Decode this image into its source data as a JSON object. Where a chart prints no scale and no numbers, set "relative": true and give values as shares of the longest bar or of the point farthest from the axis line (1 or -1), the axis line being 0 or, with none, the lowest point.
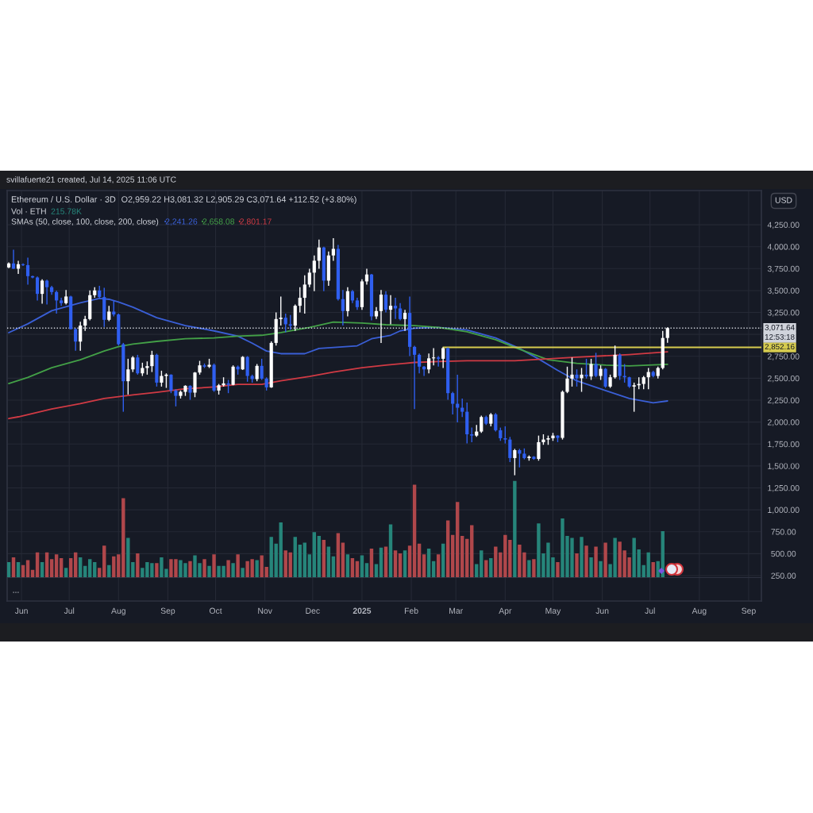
{
  "chart_data": [
    {
      "type": "candlestick",
      "title": "Ethereum / U.S. Dollar · 3D",
      "subtitle": "O2,959.22 H3,081.32 L2,905.29 C3,071.64 +112.52 (+3.80%)",
      "ylabel": "USD",
      "legend_title": "SMAs (50, close, 100, close, 200, close)",
      "legend": "top left",
      "grid": true,
      "xlim": [
        "2024-05-23",
        "2025-09-09"
      ],
      "xticks": [
        {
          "value": "2024-06-01",
          "label": "Jun"
        },
        {
          "value": "2024-07-01",
          "label": "Jul"
        },
        {
          "value": "2024-08-01",
          "label": "Aug"
        },
        {
          "value": "2024-09-01",
          "label": "Sep"
        },
        {
          "value": "2024-10-01",
          "label": "Oct"
        },
        {
          "value": "2024-11-01",
          "label": "Nov"
        },
        {
          "value": "2024-12-01",
          "label": "Dec"
        },
        {
          "value": "2025-01-01",
          "label": "2025"
        },
        {
          "value": "2025-02-01",
          "label": "Feb"
        },
        {
          "value": "2025-03-01",
          "label": "Mar"
        },
        {
          "value": "2025-04-01",
          "label": "Apr"
        },
        {
          "value": "2025-05-01",
          "label": "May"
        },
        {
          "value": "2025-06-01",
          "label": "Jun"
        },
        {
          "value": "2025-07-01",
          "label": "Jul"
        },
        {
          "value": "2025-08-01",
          "label": "Aug"
        },
        {
          "value": "2025-09-01",
          "label": "Sep"
        }
      ],
      "ylim": [
        -40,
        4640
      ],
      "yticks": [
        {
          "value": 250,
          "label": "250.00"
        },
        {
          "value": 500,
          "label": "500.00"
        },
        {
          "value": 750,
          "label": "750.00"
        },
        {
          "value": 1000,
          "label": "1,000.00"
        },
        {
          "value": 1250,
          "label": "1,250.00"
        },
        {
          "value": 1500,
          "label": "1,500.00"
        },
        {
          "value": 1750,
          "label": "1,750.00"
        },
        {
          "value": 2000,
          "label": "2,000.00"
        },
        {
          "value": 2250,
          "label": "2,250.00"
        },
        {
          "value": 2500,
          "label": "2,500.00"
        },
        {
          "value": 2750,
          "label": "2,750.00"
        },
        {
          "value": 3000,
          "label": null
        },
        {
          "value": 3250,
          "label": "3,250.00"
        },
        {
          "value": 3500,
          "label": "3,500.00"
        },
        {
          "value": 3750,
          "label": "3,750.00"
        },
        {
          "value": 4000,
          "label": "4,000.00"
        },
        {
          "value": 4250,
          "label": "4,250.00"
        }
      ],
      "x": [
        "2024-05-24",
        "2024-05-27",
        "2024-05-30",
        "2024-06-02",
        "2024-06-05",
        "2024-06-08",
        "2024-06-11",
        "2024-06-14",
        "2024-06-17",
        "2024-06-20",
        "2024-06-23",
        "2024-06-26",
        "2024-06-29",
        "2024-07-02",
        "2024-07-05",
        "2024-07-08",
        "2024-07-11",
        "2024-07-14",
        "2024-07-17",
        "2024-07-20",
        "2024-07-23",
        "2024-07-26",
        "2024-07-29",
        "2024-08-01",
        "2024-08-04",
        "2024-08-07",
        "2024-08-10",
        "2024-08-13",
        "2024-08-16",
        "2024-08-19",
        "2024-08-22",
        "2024-08-25",
        "2024-08-28",
        "2024-08-31",
        "2024-09-03",
        "2024-09-06",
        "2024-09-09",
        "2024-09-12",
        "2024-09-15",
        "2024-09-18",
        "2024-09-21",
        "2024-09-24",
        "2024-09-27",
        "2024-09-30",
        "2024-10-03",
        "2024-10-06",
        "2024-10-09",
        "2024-10-12",
        "2024-10-15",
        "2024-10-18",
        "2024-10-21",
        "2024-10-24",
        "2024-10-27",
        "2024-10-30",
        "2024-11-02",
        "2024-11-05",
        "2024-11-08",
        "2024-11-11",
        "2024-11-14",
        "2024-11-17",
        "2024-11-20",
        "2024-11-23",
        "2024-11-26",
        "2024-11-29",
        "2024-12-02",
        "2024-12-05",
        "2024-12-08",
        "2024-12-11",
        "2024-12-14",
        "2024-12-17",
        "2024-12-20",
        "2024-12-23",
        "2024-12-26",
        "2024-12-29",
        "2025-01-01",
        "2025-01-04",
        "2025-01-07",
        "2025-01-10",
        "2025-01-13",
        "2025-01-16",
        "2025-01-19",
        "2025-01-22",
        "2025-01-25",
        "2025-01-28",
        "2025-01-31",
        "2025-02-03",
        "2025-02-06",
        "2025-02-09",
        "2025-02-12",
        "2025-02-15",
        "2025-02-18",
        "2025-02-21",
        "2025-02-24",
        "2025-02-27",
        "2025-03-02",
        "2025-03-05",
        "2025-03-08",
        "2025-03-11",
        "2025-03-14",
        "2025-03-17",
        "2025-03-20",
        "2025-03-23",
        "2025-03-26",
        "2025-03-29",
        "2025-04-01",
        "2025-04-04",
        "2025-04-07",
        "2025-04-10",
        "2025-04-13",
        "2025-04-16",
        "2025-04-19",
        "2025-04-22",
        "2025-04-25",
        "2025-04-28",
        "2025-05-01",
        "2025-05-04",
        "2025-05-07",
        "2025-05-10",
        "2025-05-13",
        "2025-05-16",
        "2025-05-19",
        "2025-05-22",
        "2025-05-25",
        "2025-05-28",
        "2025-05-31",
        "2025-06-03",
        "2025-06-06",
        "2025-06-09",
        "2025-06-12",
        "2025-06-15",
        "2025-06-18",
        "2025-06-21",
        "2025-06-24",
        "2025-06-27",
        "2025-06-30",
        "2025-07-03",
        "2025-07-06",
        "2025-07-09",
        "2025-07-12"
      ],
      "ohlc": [
        [
          3764,
          3820,
          3755,
          3809
        ],
        [
          3809,
          3966,
          3745,
          3749
        ],
        [
          3749,
          3840,
          3689,
          3800
        ],
        [
          3800,
          3810,
          3780,
          3790
        ],
        [
          3790,
          3876,
          3568,
          3664
        ],
        [
          3664,
          3670,
          3640,
          3649
        ],
        [
          3649,
          3660,
          3387,
          3462
        ],
        [
          3462,
          3628,
          3350,
          3613
        ],
        [
          3613,
          3625,
          3341,
          3538
        ],
        [
          3538,
          3553,
          3453,
          3483
        ],
        [
          3483,
          3500,
          3236,
          3387
        ],
        [
          3387,
          3417,
          3326,
          3356
        ],
        [
          3356,
          3507,
          3341,
          3432
        ],
        [
          3432,
          3440,
          3055,
          3060
        ],
        [
          3060,
          3070,
          2813,
          2918
        ],
        [
          2918,
          3145,
          2813,
          3100
        ],
        [
          3100,
          3211,
          3039,
          3175
        ],
        [
          3175,
          3501,
          3160,
          3447
        ],
        [
          3447,
          3538,
          3417,
          3501
        ],
        [
          3501,
          3553,
          3417,
          3426
        ],
        [
          3426,
          3532,
          3085,
          3166
        ],
        [
          3166,
          3326,
          3150,
          3260
        ],
        [
          3260,
          3387,
          3205,
          3227
        ],
        [
          3227,
          3236,
          2873,
          2888
        ],
        [
          2888,
          2903,
          2118,
          2466
        ],
        [
          2466,
          2722,
          2314,
          2601
        ],
        [
          2601,
          2752,
          2571,
          2737
        ],
        [
          2737,
          2767,
          2541,
          2556
        ],
        [
          2556,
          2677,
          2526,
          2617
        ],
        [
          2617,
          2692,
          2541,
          2638
        ],
        [
          2638,
          2813,
          2571,
          2767
        ],
        [
          2767,
          2780,
          2405,
          2450
        ],
        [
          2450,
          2586,
          2405,
          2526
        ],
        [
          2526,
          2556,
          2390,
          2541
        ],
        [
          2541,
          2545,
          2330,
          2360
        ],
        [
          2360,
          2375,
          2179,
          2299
        ],
        [
          2299,
          2360,
          2269,
          2345
        ],
        [
          2345,
          2420,
          2299,
          2414
        ],
        [
          2414,
          2420,
          2254,
          2336
        ],
        [
          2336,
          2571,
          2284,
          2565
        ],
        [
          2565,
          2698,
          2541,
          2647
        ],
        [
          2647,
          2668,
          2617,
          2632
        ],
        [
          2632,
          2722,
          2617,
          2653
        ],
        [
          2653,
          2668,
          2345,
          2360
        ],
        [
          2360,
          2435,
          2314,
          2420
        ],
        [
          2420,
          2511,
          2405,
          2441
        ],
        [
          2441,
          2481,
          2330,
          2425
        ],
        [
          2425,
          2647,
          2420,
          2632
        ],
        [
          2632,
          2645,
          2541,
          2601
        ],
        [
          2601,
          2752,
          2595,
          2743
        ],
        [
          2743,
          2752,
          2460,
          2526
        ],
        [
          2526,
          2541,
          2450,
          2490
        ],
        [
          2490,
          2662,
          2466,
          2641
        ],
        [
          2641,
          2722,
          2481,
          2496
        ],
        [
          2496,
          2510,
          2360,
          2396
        ],
        [
          2396,
          2920,
          2390,
          2903
        ],
        [
          2903,
          3251,
          2873,
          3175
        ],
        [
          3175,
          3432,
          3100,
          3190
        ],
        [
          3190,
          3236,
          3024,
          3115
        ],
        [
          3115,
          3220,
          3054,
          3100
        ],
        [
          3100,
          3341,
          3039,
          3326
        ],
        [
          3326,
          3538,
          3251,
          3417
        ],
        [
          3417,
          3674,
          3236,
          3568
        ],
        [
          3568,
          3749,
          3538,
          3704
        ],
        [
          3704,
          3900,
          3492,
          3840
        ],
        [
          3840,
          4081,
          3749,
          3991
        ],
        [
          3991,
          4000,
          3492,
          3613
        ],
        [
          3613,
          3945,
          3553,
          3900
        ],
        [
          3900,
          4096,
          3840,
          3975
        ],
        [
          3975,
          4021,
          3387,
          3402
        ],
        [
          3402,
          3507,
          3100,
          3266
        ],
        [
          3266,
          3538,
          3205,
          3492
        ],
        [
          3492,
          3507,
          3356,
          3387
        ],
        [
          3387,
          3417,
          3281,
          3311
        ],
        [
          3311,
          3628,
          3281,
          3604
        ],
        [
          3604,
          3749,
          3568,
          3683
        ],
        [
          3683,
          3690,
          3160,
          3205
        ],
        [
          3205,
          3311,
          3175,
          3266
        ],
        [
          3266,
          3507,
          2903,
          3453
        ],
        [
          3453,
          3492,
          3251,
          3281
        ],
        [
          3281,
          3447,
          3115,
          3326
        ],
        [
          3326,
          3417,
          3175,
          3296
        ],
        [
          3296,
          3356,
          3160,
          3175
        ],
        [
          3175,
          3281,
          3039,
          3245
        ],
        [
          3245,
          3432,
          2752,
          2858
        ],
        [
          2858,
          2870,
          2148,
          2767
        ],
        [
          2767,
          2783,
          2556,
          2632
        ],
        [
          2632,
          2640,
          2526,
          2601
        ],
        [
          2601,
          2783,
          2556,
          2727
        ],
        [
          2727,
          2843,
          2647,
          2737
        ],
        [
          2737,
          2752,
          2632,
          2722
        ],
        [
          2722,
          2852.16,
          2617,
          2843
        ],
        [
          2843,
          2850,
          2254,
          2330
        ],
        [
          2330,
          2345,
          2088,
          2209
        ],
        [
          2209,
          2541,
          1997,
          2164
        ],
        [
          2164,
          2269,
          2058,
          2118
        ],
        [
          2118,
          2224,
          1756,
          1861
        ],
        [
          1861,
          1937,
          1771,
          1846
        ],
        [
          1846,
          1967,
          1831,
          1892
        ],
        [
          1892,
          2073,
          1877,
          2058
        ],
        [
          2058,
          2073,
          1967,
          1982
        ],
        [
          1982,
          2103,
          1952,
          2088
        ],
        [
          2088,
          2103,
          1892,
          1907
        ],
        [
          1907,
          1937,
          1786,
          1816
        ],
        [
          1816,
          1952,
          1756,
          1801
        ],
        [
          1801,
          1831,
          1544,
          1590
        ],
        [
          1590,
          1695,
          1394,
          1680
        ],
        [
          1680,
          1695,
          1484,
          1640
        ],
        [
          1640,
          1700,
          1575,
          1590
        ],
        [
          1590,
          1620,
          1560,
          1605
        ],
        [
          1605,
          1612,
          1570,
          1580
        ],
        [
          1580,
          1846,
          1560,
          1771
        ],
        [
          1771,
          1861,
          1741,
          1801
        ],
        [
          1801,
          1846,
          1741,
          1816
        ],
        [
          1816,
          1877,
          1786,
          1846
        ],
        [
          1846,
          1850,
          1771,
          1820
        ],
        [
          1820,
          2360,
          1801,
          2345
        ],
        [
          2345,
          2632,
          2330,
          2496
        ],
        [
          2496,
          2737,
          2405,
          2541
        ],
        [
          2541,
          2601,
          2405,
          2500
        ],
        [
          2500,
          2617,
          2345,
          2541
        ],
        [
          2541,
          2722,
          2496,
          2520
        ],
        [
          2520,
          2722,
          2481,
          2662
        ],
        [
          2662,
          2790,
          2511,
          2526
        ],
        [
          2526,
          2647,
          2481,
          2607
        ],
        [
          2607,
          2617,
          2390,
          2405
        ],
        [
          2405,
          2541,
          2390,
          2511
        ],
        [
          2511,
          2873,
          2496,
          2767
        ],
        [
          2767,
          2783,
          2481,
          2526
        ],
        [
          2526,
          2662,
          2450,
          2511
        ],
        [
          2511,
          2517,
          2390,
          2405
        ],
        [
          2405,
          2450,
          2118,
          2420
        ],
        [
          2420,
          2511,
          2375,
          2435
        ],
        [
          2435,
          2526,
          2375,
          2511
        ],
        [
          2511,
          2617,
          2375,
          2571
        ],
        [
          2571,
          2586,
          2511,
          2526
        ],
        [
          2526,
          2632,
          2496,
          2617
        ],
        [
          2617,
          3039,
          2601,
          2959.22
        ],
        [
          2959.22,
          3081.32,
          2905.29,
          3071.64
        ]
      ],
      "colors": [
        "#ffffff",
        "#2f5ff0",
        "#ffffff",
        "#2f5ff0",
        "#2f5ff0",
        "#2f5ff0",
        "#2f5ff0",
        "#ffffff",
        "#2f5ff0",
        "#2f5ff0",
        "#2f5ff0",
        "#2f5ff0",
        "#ffffff",
        "#2f5ff0",
        "#2f5ff0",
        "#ffffff",
        "#ffffff",
        "#ffffff",
        "#ffffff",
        "#2f5ff0",
        "#2f5ff0",
        "#ffffff",
        "#2f5ff0",
        "#2f5ff0",
        "#2f5ff0",
        "#ffffff",
        "#ffffff",
        "#2f5ff0",
        "#ffffff",
        "#ffffff",
        "#ffffff",
        "#2f5ff0",
        "#ffffff",
        "#ffffff",
        "#2f5ff0",
        "#2f5ff0",
        "#ffffff",
        "#ffffff",
        "#2f5ff0",
        "#ffffff",
        "#ffffff",
        "#2f5ff0",
        "#ffffff",
        "#2f5ff0",
        "#ffffff",
        "#ffffff",
        "#2f5ff0",
        "#ffffff",
        "#2f5ff0",
        "#ffffff",
        "#2f5ff0",
        "#2f5ff0",
        "#ffffff",
        "#2f5ff0",
        "#2f5ff0",
        "#ffffff",
        "#ffffff",
        "#ffffff",
        "#2f5ff0",
        "#2f5ff0",
        "#ffffff",
        "#ffffff",
        "#ffffff",
        "#ffffff",
        "#ffffff",
        "#ffffff",
        "#2f5ff0",
        "#ffffff",
        "#ffffff",
        "#2f5ff0",
        "#2f5ff0",
        "#ffffff",
        "#2f5ff0",
        "#2f5ff0",
        "#ffffff",
        "#ffffff",
        "#2f5ff0",
        "#ffffff",
        "#ffffff",
        "#2f5ff0",
        "#ffffff",
        "#2f5ff0",
        "#2f5ff0",
        "#ffffff",
        "#2f5ff0",
        "#2f5ff0",
        "#2f5ff0",
        "#2f5ff0",
        "#ffffff",
        "#ffffff",
        "#2f5ff0",
        "#ffffff",
        "#2f5ff0",
        "#2f5ff0",
        "#2f5ff0",
        "#2f5ff0",
        "#2f5ff0",
        "#2f5ff0",
        "#ffffff",
        "#ffffff",
        "#2f5ff0",
        "#ffffff",
        "#2f5ff0",
        "#2f5ff0",
        "#2f5ff0",
        "#2f5ff0",
        "#ffffff",
        "#2f5ff0",
        "#2f5ff0",
        "#ffffff",
        "#2f5ff0",
        "#ffffff",
        "#ffffff",
        "#ffffff",
        "#ffffff",
        "#2f5ff0",
        "#ffffff",
        "#ffffff",
        "#ffffff",
        "#2f5ff0",
        "#ffffff",
        "#2f5ff0",
        "#ffffff",
        "#2f5ff0",
        "#ffffff",
        "#2f5ff0",
        "#ffffff",
        "#ffffff",
        "#2f5ff0",
        "#2f5ff0",
        "#2f5ff0",
        "#ffffff",
        "#ffffff",
        "#ffffff",
        "#ffffff",
        "#2f5ff0",
        "#ffffff",
        "#ffffff",
        "#ffffff"
      ],
      "series": [
        {
          "type": "line",
          "name": "2,241.26",
          "color": "#3a5fd6",
          "x": [
            "2024-05-24",
            "2024-06-05",
            "2024-06-20",
            "2024-07-08",
            "2024-07-20",
            "2024-07-26",
            "2024-08-01",
            "2024-08-10",
            "2024-08-25",
            "2024-09-12",
            "2024-09-30",
            "2024-10-15",
            "2024-10-24",
            "2024-11-02",
            "2024-11-11",
            "2024-11-26",
            "2024-12-05",
            "2024-12-29",
            "2025-01-07",
            "2025-01-19",
            "2025-01-25",
            "2025-02-03",
            "2025-02-18",
            "2025-03-08",
            "2025-03-26",
            "2025-04-10",
            "2025-04-22",
            "2025-05-04",
            "2025-05-16",
            "2025-06-03",
            "2025-06-18",
            "2025-07-03",
            "2025-07-12"
          ],
          "values": [
            3020,
            3120,
            3270,
            3360,
            3410,
            3400,
            3370,
            3310,
            3190,
            3100,
            3040,
            2980,
            2900,
            2810,
            2780,
            2780,
            2840,
            2870,
            2950,
            2990,
            3040,
            3070,
            3080,
            3050,
            2960,
            2840,
            2720,
            2590,
            2470,
            2360,
            2270,
            2220,
            2241.26
          ]
        },
        {
          "type": "line",
          "name": "2,658.08",
          "color": "#43a047",
          "x": [
            "2024-05-24",
            "2024-06-05",
            "2024-06-20",
            "2024-07-08",
            "2024-07-23",
            "2024-08-01",
            "2024-08-10",
            "2024-08-25",
            "2024-09-12",
            "2024-09-30",
            "2024-10-15",
            "2024-10-30",
            "2024-11-11",
            "2024-11-29",
            "2024-12-14",
            "2025-01-01",
            "2025-01-16",
            "2025-02-03",
            "2025-02-18",
            "2025-03-08",
            "2025-03-26",
            "2025-04-10",
            "2025-04-28",
            "2025-05-16",
            "2025-06-03",
            "2025-06-18",
            "2025-07-12"
          ],
          "values": [
            2440,
            2510,
            2620,
            2710,
            2810,
            2860,
            2890,
            2920,
            2950,
            2960,
            2980,
            2990,
            3020,
            3080,
            3140,
            3130,
            3110,
            3100,
            3080,
            3030,
            2940,
            2830,
            2710,
            2670,
            2650,
            2640,
            2658.08
          ]
        },
        {
          "type": "line",
          "name": "2,801.17",
          "color": "#d03a44",
          "x": [
            "2024-05-24",
            "2024-05-30",
            "2024-06-20",
            "2024-07-08",
            "2024-07-23",
            "2024-08-10",
            "2024-08-25",
            "2024-09-12",
            "2024-09-30",
            "2024-10-15",
            "2024-10-30",
            "2024-11-11",
            "2024-11-29",
            "2024-12-14",
            "2025-01-01",
            "2025-01-16",
            "2025-02-03",
            "2025-02-18",
            "2025-03-08",
            "2025-04-07",
            "2025-05-16",
            "2025-06-18",
            "2025-07-12"
          ],
          "values": [
            2040,
            2060,
            2150,
            2210,
            2270,
            2310,
            2340,
            2380,
            2400,
            2430,
            2430,
            2470,
            2520,
            2570,
            2620,
            2650,
            2680,
            2690,
            2700,
            2700,
            2740,
            2770,
            2801.17
          ]
        },
        {
          "type": "line",
          "color": "#d6cb4f",
          "x": [
            "2025-02-21",
            "2025-09-09"
          ],
          "values": [
            2852.16,
            2852.16
          ],
          "value_labels": [
            null,
            "2,852.16"
          ]
        }
      ],
      "ref_lines": [
        {
          "axis": "y",
          "value": 3071.64,
          "label": "3,071.64",
          "color": "#d1d4dc",
          "line_style": "dotted"
        }
      ],
      "annotations": [
        "svillafuerte21 created, Jul 14, 2025 11:06 UTC",
        "12:53:18",
        "..."
      ]
    },
    {
      "type": "bar",
      "relative": true,
      "title": "Vol · ETH",
      "subtitle": "215.78K",
      "tick_labels": false,
      "xlim": [
        "2024-05-23",
        "2025-09-09"
      ],
      "x": [
        "2024-05-24",
        "2024-05-27",
        "2024-05-30",
        "2024-06-02",
        "2024-06-05",
        "2024-06-08",
        "2024-06-11",
        "2024-06-14",
        "2024-06-17",
        "2024-06-20",
        "2024-06-23",
        "2024-06-26",
        "2024-06-29",
        "2024-07-02",
        "2024-07-05",
        "2024-07-08",
        "2024-07-11",
        "2024-07-14",
        "2024-07-17",
        "2024-07-20",
        "2024-07-23",
        "2024-07-26",
        "2024-07-29",
        "2024-08-01",
        "2024-08-04",
        "2024-08-07",
        "2024-08-10",
        "2024-08-13",
        "2024-08-16",
        "2024-08-19",
        "2024-08-22",
        "2024-08-25",
        "2024-08-28",
        "2024-08-31",
        "2024-09-03",
        "2024-09-06",
        "2024-09-09",
        "2024-09-12",
        "2024-09-15",
        "2024-09-18",
        "2024-09-21",
        "2024-09-24",
        "2024-09-27",
        "2024-09-30",
        "2024-10-03",
        "2024-10-06",
        "2024-10-09",
        "2024-10-12",
        "2024-10-15",
        "2024-10-18",
        "2024-10-21",
        "2024-10-24",
        "2024-10-27",
        "2024-10-30",
        "2024-11-02",
        "2024-11-05",
        "2024-11-08",
        "2024-11-11",
        "2024-11-14",
        "2024-11-17",
        "2024-11-20",
        "2024-11-23",
        "2024-11-26",
        "2024-11-29",
        "2024-12-02",
        "2024-12-05",
        "2024-12-08",
        "2024-12-11",
        "2024-12-14",
        "2024-12-17",
        "2024-12-20",
        "2024-12-23",
        "2024-12-26",
        "2024-12-29",
        "2025-01-01",
        "2025-01-04",
        "2025-01-07",
        "2025-01-10",
        "2025-01-13",
        "2025-01-16",
        "2025-01-19",
        "2025-01-22",
        "2025-01-25",
        "2025-01-28",
        "2025-01-31",
        "2025-02-03",
        "2025-02-06",
        "2025-02-09",
        "2025-02-12",
        "2025-02-15",
        "2025-02-18",
        "2025-02-21",
        "2025-02-24",
        "2025-02-27",
        "2025-03-02",
        "2025-03-05",
        "2025-03-08",
        "2025-03-11",
        "2025-03-14",
        "2025-03-17",
        "2025-03-20",
        "2025-03-23",
        "2025-03-26",
        "2025-03-29",
        "2025-04-01",
        "2025-04-04",
        "2025-04-07",
        "2025-04-10",
        "2025-04-13",
        "2025-04-16",
        "2025-04-19",
        "2025-04-22",
        "2025-04-25",
        "2025-04-28",
        "2025-05-01",
        "2025-05-04",
        "2025-05-07",
        "2025-05-10",
        "2025-05-13",
        "2025-05-16",
        "2025-05-19",
        "2025-05-22",
        "2025-05-25",
        "2025-05-28",
        "2025-05-31",
        "2025-06-03",
        "2025-06-06",
        "2025-06-09",
        "2025-06-12",
        "2025-06-15",
        "2025-06-18",
        "2025-06-21",
        "2025-06-24",
        "2025-06-27",
        "2025-06-30",
        "2025-07-03",
        "2025-07-06",
        "2025-07-09"
      ],
      "values": [
        0.16,
        0.21,
        0.16,
        0.13,
        0.18,
        0.08,
        0.26,
        0.16,
        0.26,
        0.19,
        0.24,
        0.2,
        0.1,
        0.2,
        0.26,
        0.21,
        0.12,
        0.19,
        0.16,
        0.1,
        0.33,
        0.13,
        0.22,
        0.24,
        0.82,
        0.41,
        0.16,
        0.25,
        0.1,
        0.16,
        0.15,
        0.15,
        0.21,
        0.09,
        0.19,
        0.19,
        0.18,
        0.15,
        0.17,
        0.23,
        0.15,
        0.19,
        0.12,
        0.24,
        0.12,
        0.12,
        0.18,
        0.15,
        0.24,
        0.1,
        0.17,
        0.19,
        0.18,
        0.23,
        0.11,
        0.42,
        0.35,
        0.57,
        0.28,
        0.26,
        0.42,
        0.34,
        0.36,
        0.24,
        0.47,
        0.43,
        0.39,
        0.32,
        0.22,
        0.46,
        0.36,
        0.24,
        0.2,
        0.17,
        0.23,
        0.15,
        0.3,
        0.14,
        0.31,
        0.32,
        0.55,
        0.28,
        0.25,
        0.28,
        0.33,
        0.96,
        0.35,
        0.24,
        0.3,
        0.17,
        0.24,
        0.35,
        0.59,
        0.44,
        0.78,
        0.43,
        0.4,
        0.54,
        0.14,
        0.28,
        0.18,
        0.2,
        0.32,
        0.26,
        0.44,
        0.39,
        1,
        0.34,
        0.26,
        0.18,
        0.19,
        0.56,
        0.25,
        0.36,
        0.21,
        0.16,
        0.61,
        0.43,
        0.41,
        0.25,
        0.42,
        0.33,
        0.21,
        0.32,
        0.17,
        0.36,
        0.14,
        0.41,
        0.37,
        0.28,
        0.21,
        0.41,
        0.29,
        0.13,
        0.26,
        0.16,
        0.17,
        0.48
      ],
      "colors": [
        "#26857a",
        "#b0474b",
        "#26857a",
        "#b0474b",
        "#b0474b",
        "#b0474b",
        "#b0474b",
        "#26857a",
        "#b0474b",
        "#b0474b",
        "#b0474b",
        "#b0474b",
        "#26857a",
        "#b0474b",
        "#b0474b",
        "#26857a",
        "#26857a",
        "#26857a",
        "#26857a",
        "#b0474b",
        "#b0474b",
        "#26857a",
        "#b0474b",
        "#b0474b",
        "#b0474b",
        "#26857a",
        "#26857a",
        "#b0474b",
        "#26857a",
        "#26857a",
        "#26857a",
        "#b0474b",
        "#26857a",
        "#26857a",
        "#b0474b",
        "#b0474b",
        "#26857a",
        "#26857a",
        "#b0474b",
        "#26857a",
        "#26857a",
        "#b0474b",
        "#26857a",
        "#b0474b",
        "#26857a",
        "#26857a",
        "#b0474b",
        "#26857a",
        "#b0474b",
        "#26857a",
        "#b0474b",
        "#b0474b",
        "#26857a",
        "#b0474b",
        "#b0474b",
        "#26857a",
        "#26857a",
        "#26857a",
        "#b0474b",
        "#b0474b",
        "#26857a",
        "#26857a",
        "#26857a",
        "#26857a",
        "#26857a",
        "#26857a",
        "#b0474b",
        "#26857a",
        "#26857a",
        "#b0474b",
        "#b0474b",
        "#26857a",
        "#b0474b",
        "#b0474b",
        "#26857a",
        "#26857a",
        "#b0474b",
        "#26857a",
        "#26857a",
        "#b0474b",
        "#26857a",
        "#b0474b",
        "#b0474b",
        "#26857a",
        "#b0474b",
        "#b0474b",
        "#b0474b",
        "#b0474b",
        "#26857a",
        "#26857a",
        "#b0474b",
        "#26857a",
        "#b0474b",
        "#b0474b",
        "#b0474b",
        "#b0474b",
        "#b0474b",
        "#b0474b",
        "#26857a",
        "#26857a",
        "#b0474b",
        "#26857a",
        "#b0474b",
        "#b0474b",
        "#b0474b",
        "#b0474b",
        "#26857a",
        "#b0474b",
        "#b0474b",
        "#26857a",
        "#b0474b",
        "#26857a",
        "#26857a",
        "#26857a",
        "#26857a",
        "#b0474b",
        "#26857a",
        "#26857a",
        "#26857a",
        "#b0474b",
        "#26857a",
        "#b0474b",
        "#26857a",
        "#b0474b",
        "#26857a",
        "#b0474b",
        "#26857a",
        "#26857a",
        "#b0474b",
        "#b0474b",
        "#b0474b",
        "#26857a",
        "#26857a",
        "#26857a",
        "#26857a",
        "#b0474b",
        "#26857a",
        "#26857a"
      ]
    }
  ]
}
